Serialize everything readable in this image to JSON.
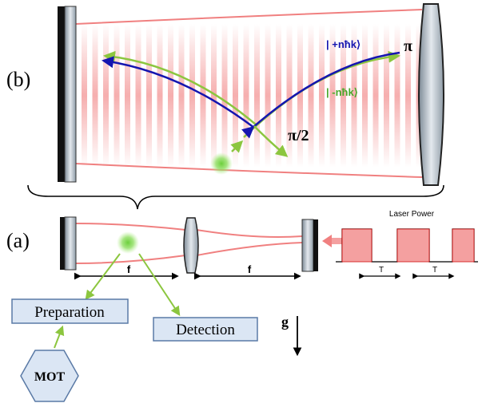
{
  "panels": {
    "b": {
      "label": "(b)",
      "pi": "π",
      "pi_half": "π/2",
      "state_plus": "| +nħk⟩",
      "state_minus": "| -nħk⟩"
    },
    "a": {
      "label": "(a)",
      "laser_power": "Laser Power",
      "period_labels": [
        "T",
        "T"
      ],
      "focal_labels": [
        "f",
        "f"
      ]
    }
  },
  "boxes": {
    "preparation": "Preparation",
    "detection": "Detection",
    "mot": "MOT"
  },
  "gravity": "g"
}
